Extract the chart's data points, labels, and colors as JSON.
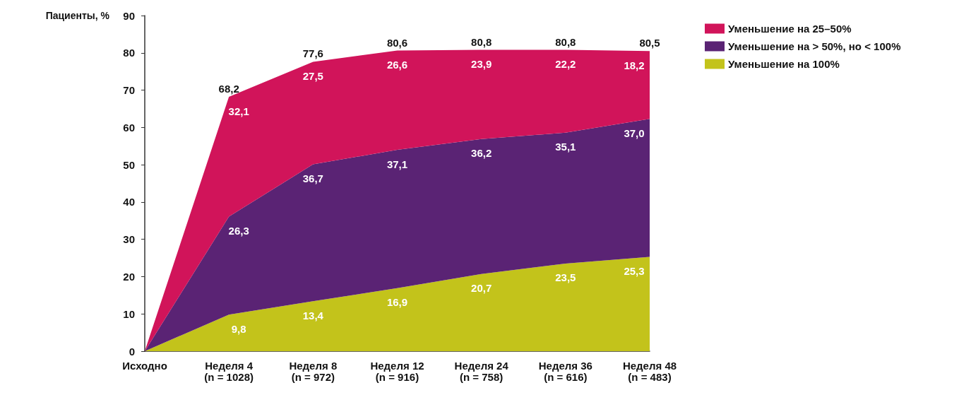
{
  "chart_data": {
    "type": "area",
    "stacked": true,
    "ylabel": "Пациенты, %",
    "categories": [
      "Исходно",
      "Неделя 4\n(n = 1028)",
      "Неделя 8\n(n = 972)",
      "Неделя 12\n(n = 916)",
      "Неделя 24\n(n = 758)",
      "Неделя 36\n(n = 616)",
      "Неделя 48\n(n = 483)"
    ],
    "series": [
      {
        "name": "Уменьшение на 100%",
        "color": "#c3c31b",
        "values": [
          0,
          9.8,
          13.4,
          16.9,
          20.7,
          23.5,
          25.3
        ],
        "value_labels": [
          null,
          "9,8",
          "13,4",
          "16,9",
          "20,7",
          "23,5",
          "25,3"
        ]
      },
      {
        "name": "Уменьшение на > 50%, но < 100%",
        "color": "#5a2374",
        "values": [
          0,
          26.3,
          36.7,
          37.1,
          36.2,
          35.1,
          37.0
        ],
        "value_labels": [
          null,
          "26,3",
          "36,7",
          "37,1",
          "36,2",
          "35,1",
          "37,0"
        ]
      },
      {
        "name": "Уменьшение на 25–50%",
        "color": "#d1145a",
        "values": [
          0,
          32.1,
          27.5,
          26.6,
          23.9,
          22.2,
          18.2
        ],
        "value_labels": [
          null,
          "32,1",
          "27,5",
          "26,6",
          "23,9",
          "22,2",
          "18,2"
        ]
      }
    ],
    "totals": [
      null,
      "68,2",
      "77,6",
      "80,6",
      "80,8",
      "80,8",
      "80,5"
    ],
    "ylim": [
      0,
      90
    ],
    "yticks": [
      0,
      10,
      20,
      30,
      40,
      50,
      60,
      70,
      80,
      90
    ],
    "grid": false,
    "legend": "top right",
    "marker": "none"
  }
}
